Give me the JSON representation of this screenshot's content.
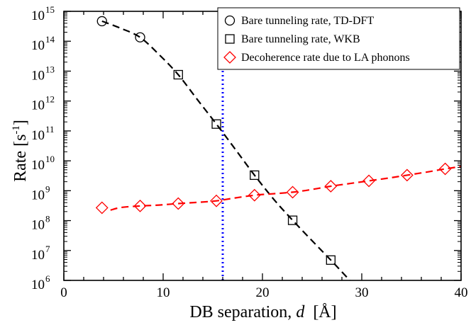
{
  "chart_data": {
    "type": "scatter",
    "title": "",
    "xlabel": "DB separation, d  [Å]",
    "xlabel_parts": {
      "prefix": "DB separation, ",
      "var": "d",
      "suffix": "  [Å]"
    },
    "ylabel": "Rate [s-1]",
    "ylabel_parts": {
      "base": "Rate [s",
      "sup": "-1",
      "close": "]"
    },
    "xlim": [
      0,
      40
    ],
    "ylim_log10": [
      6,
      15
    ],
    "yscale": "log",
    "x_ticks": [
      "0",
      "10",
      "20",
      "30",
      "40"
    ],
    "y_ticks": [
      {
        "base": "10",
        "exp": "6"
      },
      {
        "base": "10",
        "exp": "7"
      },
      {
        "base": "10",
        "exp": "8"
      },
      {
        "base": "10",
        "exp": "9"
      },
      {
        "base": "10",
        "exp": "10"
      },
      {
        "base": "10",
        "exp": "11"
      },
      {
        "base": "10",
        "exp": "12"
      },
      {
        "base": "10",
        "exp": "13"
      },
      {
        "base": "10",
        "exp": "14"
      },
      {
        "base": "10",
        "exp": "15"
      }
    ],
    "vertical_line_x": 16.0,
    "legend_position": "top-right",
    "series": [
      {
        "name": "Bare tunneling rate, TD-DFT",
        "marker": "circle",
        "color": "#000000",
        "x": [
          3.84,
          7.68
        ],
        "log10_y": [
          14.67,
          14.13
        ]
      },
      {
        "name": "Bare tunneling rate, WKB",
        "marker": "square",
        "color": "#000000",
        "x": [
          11.52,
          15.36,
          19.2,
          23.04,
          26.88
        ],
        "log10_y": [
          12.88,
          11.23,
          9.52,
          8.01,
          6.68
        ]
      },
      {
        "name": "Decoherence rate due to LA phonons",
        "marker": "diamond",
        "color": "#ff0000",
        "x": [
          3.84,
          7.68,
          11.52,
          15.36,
          19.2,
          23.04,
          26.88,
          30.72,
          34.56,
          38.4
        ],
        "log10_y": [
          8.43,
          8.49,
          8.57,
          8.66,
          8.85,
          8.95,
          9.15,
          9.33,
          9.52,
          9.73
        ]
      }
    ],
    "fit_curves": [
      {
        "name": "tunneling fit",
        "color": "#000000",
        "x": [
          3.84,
          5.76,
          7.68,
          9.6,
          11.52,
          13.44,
          15.36,
          17.28,
          19.2,
          21.12,
          23.04,
          24.96,
          26.88,
          28.8
        ],
        "log10_y": [
          14.67,
          14.43,
          14.13,
          13.55,
          12.88,
          12.05,
          11.23,
          10.38,
          9.52,
          8.72,
          8.01,
          7.34,
          6.68,
          6.0
        ]
      },
      {
        "name": "decoherence fit",
        "color": "#ff0000",
        "x": [
          4.7,
          5.76,
          7.68,
          9.6,
          11.52,
          13.44,
          15.36,
          17.28,
          19.2,
          21.12,
          23.04,
          24.96,
          26.88,
          28.8,
          30.72,
          32.64,
          34.56,
          36.48,
          38.4,
          40.0
        ],
        "log10_y": [
          8.35,
          8.44,
          8.49,
          8.52,
          8.57,
          8.61,
          8.66,
          8.76,
          8.85,
          8.9,
          8.95,
          9.04,
          9.15,
          9.24,
          9.33,
          9.42,
          9.52,
          9.62,
          9.73,
          9.81
        ]
      }
    ]
  }
}
